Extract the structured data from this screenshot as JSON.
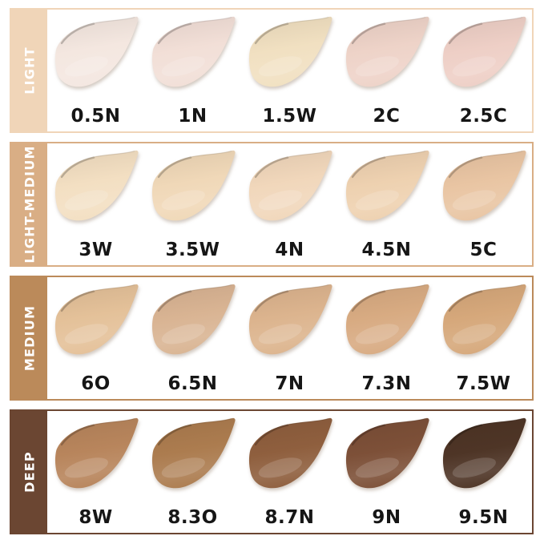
{
  "chart_title": "foundation-shade-chart",
  "styles": {
    "background": "#ffffff",
    "band_text_color": "#ffffff",
    "shade_label_color": "#161616"
  },
  "rows": [
    {
      "category": "LIGHT",
      "band_color": "#f0d5b8",
      "shades": [
        {
          "label": "0.5N",
          "color": "#f4e7e0"
        },
        {
          "label": "1N",
          "color": "#f2dfd7"
        },
        {
          "label": "1.5W",
          "color": "#f1e0c1"
        },
        {
          "label": "2C",
          "color": "#eed3c8"
        },
        {
          "label": "2.5C",
          "color": "#eecfc6"
        }
      ]
    },
    {
      "category": "LIGHT-MEDIUM",
      "band_color": "#d9ae85",
      "shades": [
        {
          "label": "3W",
          "color": "#f3dfc2"
        },
        {
          "label": "3.5W",
          "color": "#f0d8b8"
        },
        {
          "label": "4N",
          "color": "#f1d7bb"
        },
        {
          "label": "4.5N",
          "color": "#eed1b0"
        },
        {
          "label": "5C",
          "color": "#e9c5a3"
        }
      ]
    },
    {
      "category": "MEDIUM",
      "band_color": "#bb8a5a",
      "shades": [
        {
          "label": "6O",
          "color": "#e4c199"
        },
        {
          "label": "6.5N",
          "color": "#d9b493"
        },
        {
          "label": "7N",
          "color": "#dcb48e"
        },
        {
          "label": "7.3N",
          "color": "#d8ab82"
        },
        {
          "label": "7.5W",
          "color": "#d6a87b"
        }
      ]
    },
    {
      "category": "DEEP",
      "band_color": "#6b4632",
      "shades": [
        {
          "label": "8W",
          "color": "#b8855c"
        },
        {
          "label": "8.3O",
          "color": "#ac7c4f"
        },
        {
          "label": "8.7N",
          "color": "#8f5f3e"
        },
        {
          "label": "9N",
          "color": "#7d5038"
        },
        {
          "label": "9.5N",
          "color": "#4e3526"
        }
      ]
    }
  ]
}
